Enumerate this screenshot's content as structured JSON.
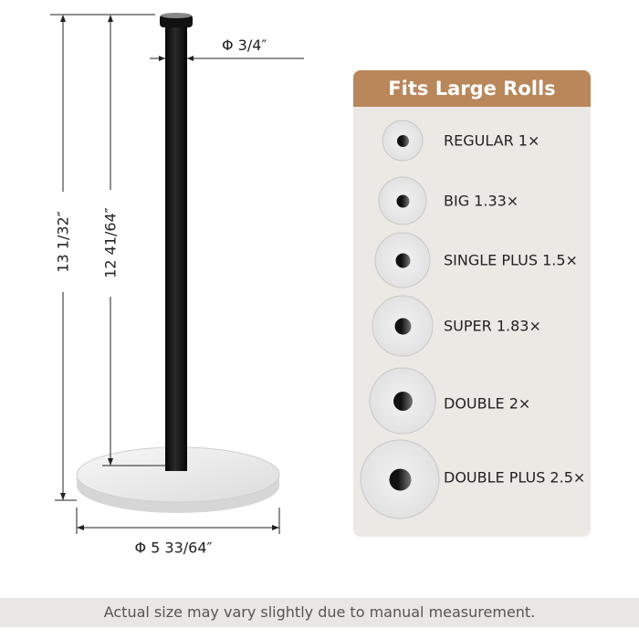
{
  "dimensions": {
    "pole_diameter": "Φ 3/4″",
    "total_height": "13 1/32″",
    "pole_height": "12 41/64″",
    "base_diameter": "Φ 5 33/64″"
  },
  "panel": {
    "title": "Fits Large Rolls",
    "rolls": [
      {
        "label": "REGULAR 1×"
      },
      {
        "label": "BIG 1.33×"
      },
      {
        "label": "SINGLE PLUS 1.5×"
      },
      {
        "label": "SUPER 1.83×"
      },
      {
        "label": "DOUBLE 2×"
      },
      {
        "label": "DOUBLE PLUS 2.5×"
      }
    ],
    "colors": {
      "header": "#b9875a",
      "body": "#ece9e5"
    }
  },
  "caption": "Actual size may vary slightly due to manual measurement."
}
